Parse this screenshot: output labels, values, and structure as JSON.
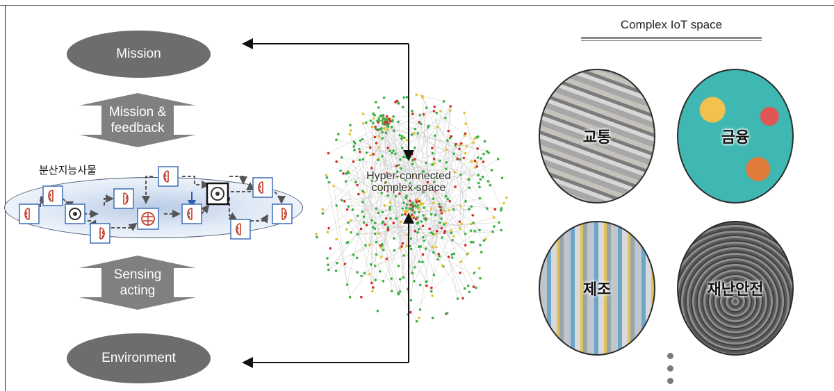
{
  "diagram": {
    "left_nodes": {
      "mission": "Mission",
      "environment": "Environment"
    },
    "arrows": {
      "mission_feedback": [
        "Mission &",
        "feedback"
      ],
      "sensing_acting": [
        "Sensing",
        "acting"
      ]
    },
    "agents_label": "분산지능사물",
    "hub_label": [
      "Hyper-connected",
      "complex space"
    ],
    "iot_space": {
      "title": "Complex IoT space",
      "domains": [
        {
          "label": "교통"
        },
        {
          "label": "금융"
        },
        {
          "label": "제조"
        },
        {
          "label": "재난안전"
        }
      ]
    },
    "colors": {
      "node_gray": "#6d6d6d",
      "arrow_gray": "#808080",
      "agent_card_border": "#3f6fb5",
      "brain_red": "#c0392b",
      "network_green": "#3cb043",
      "network_red": "#d62b2b",
      "network_yellow": "#e3c22a"
    }
  }
}
